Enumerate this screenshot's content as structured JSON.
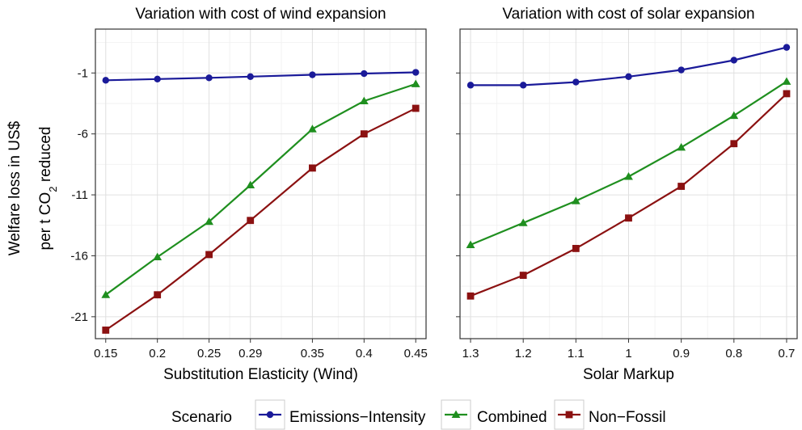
{
  "y_axis": {
    "label_line1": "Welfare loss in US$",
    "label_line2_prefix": "per t CO",
    "label_line2_sub": "2",
    "label_line2_suffix": " reduced"
  },
  "legend": {
    "title": "Scenario",
    "placement": "bottom"
  },
  "series_styles": [
    {
      "name": "Emissions−Intensity",
      "color": "#1a1a99",
      "marker": "circle"
    },
    {
      "name": "Combined",
      "color": "#1f8f1f",
      "marker": "triangle"
    },
    {
      "name": "Non−Fossil",
      "color": "#8b1111",
      "marker": "square"
    }
  ],
  "chart_data": [
    {
      "type": "line",
      "title": "Variation with cost of wind expansion",
      "xlabel": "Substitution Elasticity (Wind)",
      "ylabel": "Welfare loss in US$ per t CO2 reduced",
      "categories": [
        "0.15",
        "0.2",
        "0.25",
        "0.29",
        "0.35",
        "0.4",
        "0.45"
      ],
      "x": [
        0.15,
        0.2,
        0.25,
        0.29,
        0.35,
        0.4,
        0.45
      ],
      "xlim": [
        0.14,
        0.46
      ],
      "ylim": [
        -22.8,
        2.6
      ],
      "yticks": [
        -21,
        -16,
        -11,
        -6,
        -1
      ],
      "grid": true,
      "series": [
        {
          "name": "Emissions−Intensity",
          "values": [
            -1.6,
            -1.5,
            -1.4,
            -1.3,
            -1.15,
            -1.05,
            -0.95
          ]
        },
        {
          "name": "Combined",
          "values": [
            -19.2,
            -16.1,
            -13.2,
            -10.2,
            -5.6,
            -3.3,
            -1.9
          ]
        },
        {
          "name": "Non−Fossil",
          "values": [
            -22.1,
            -19.2,
            -15.9,
            -13.1,
            -8.8,
            -6.0,
            -3.9
          ]
        }
      ]
    },
    {
      "type": "line",
      "title": "Variation with cost of solar expansion",
      "xlabel": "Solar Markup",
      "ylabel": "",
      "categories": [
        "1.3",
        "1.2",
        "1.1",
        "1",
        "0.9",
        "0.8",
        "0.7"
      ],
      "x": [
        1.3,
        1.2,
        1.1,
        1.0,
        0.9,
        0.8,
        0.7
      ],
      "xlim": [
        1.32,
        0.68
      ],
      "ylim": [
        -22.8,
        2.6
      ],
      "yticks": [
        -21,
        -16,
        -11,
        -6,
        -1
      ],
      "grid": true,
      "series": [
        {
          "name": "Emissions−Intensity",
          "values": [
            -2.0,
            -2.0,
            -1.75,
            -1.3,
            -0.75,
            0.05,
            1.1
          ]
        },
        {
          "name": "Combined",
          "values": [
            -15.1,
            -13.3,
            -11.5,
            -9.5,
            -7.1,
            -4.5,
            -1.7
          ]
        },
        {
          "name": "Non−Fossil",
          "values": [
            -19.3,
            -17.6,
            -15.4,
            -12.9,
            -10.3,
            -6.8,
            -2.7
          ]
        }
      ]
    }
  ]
}
